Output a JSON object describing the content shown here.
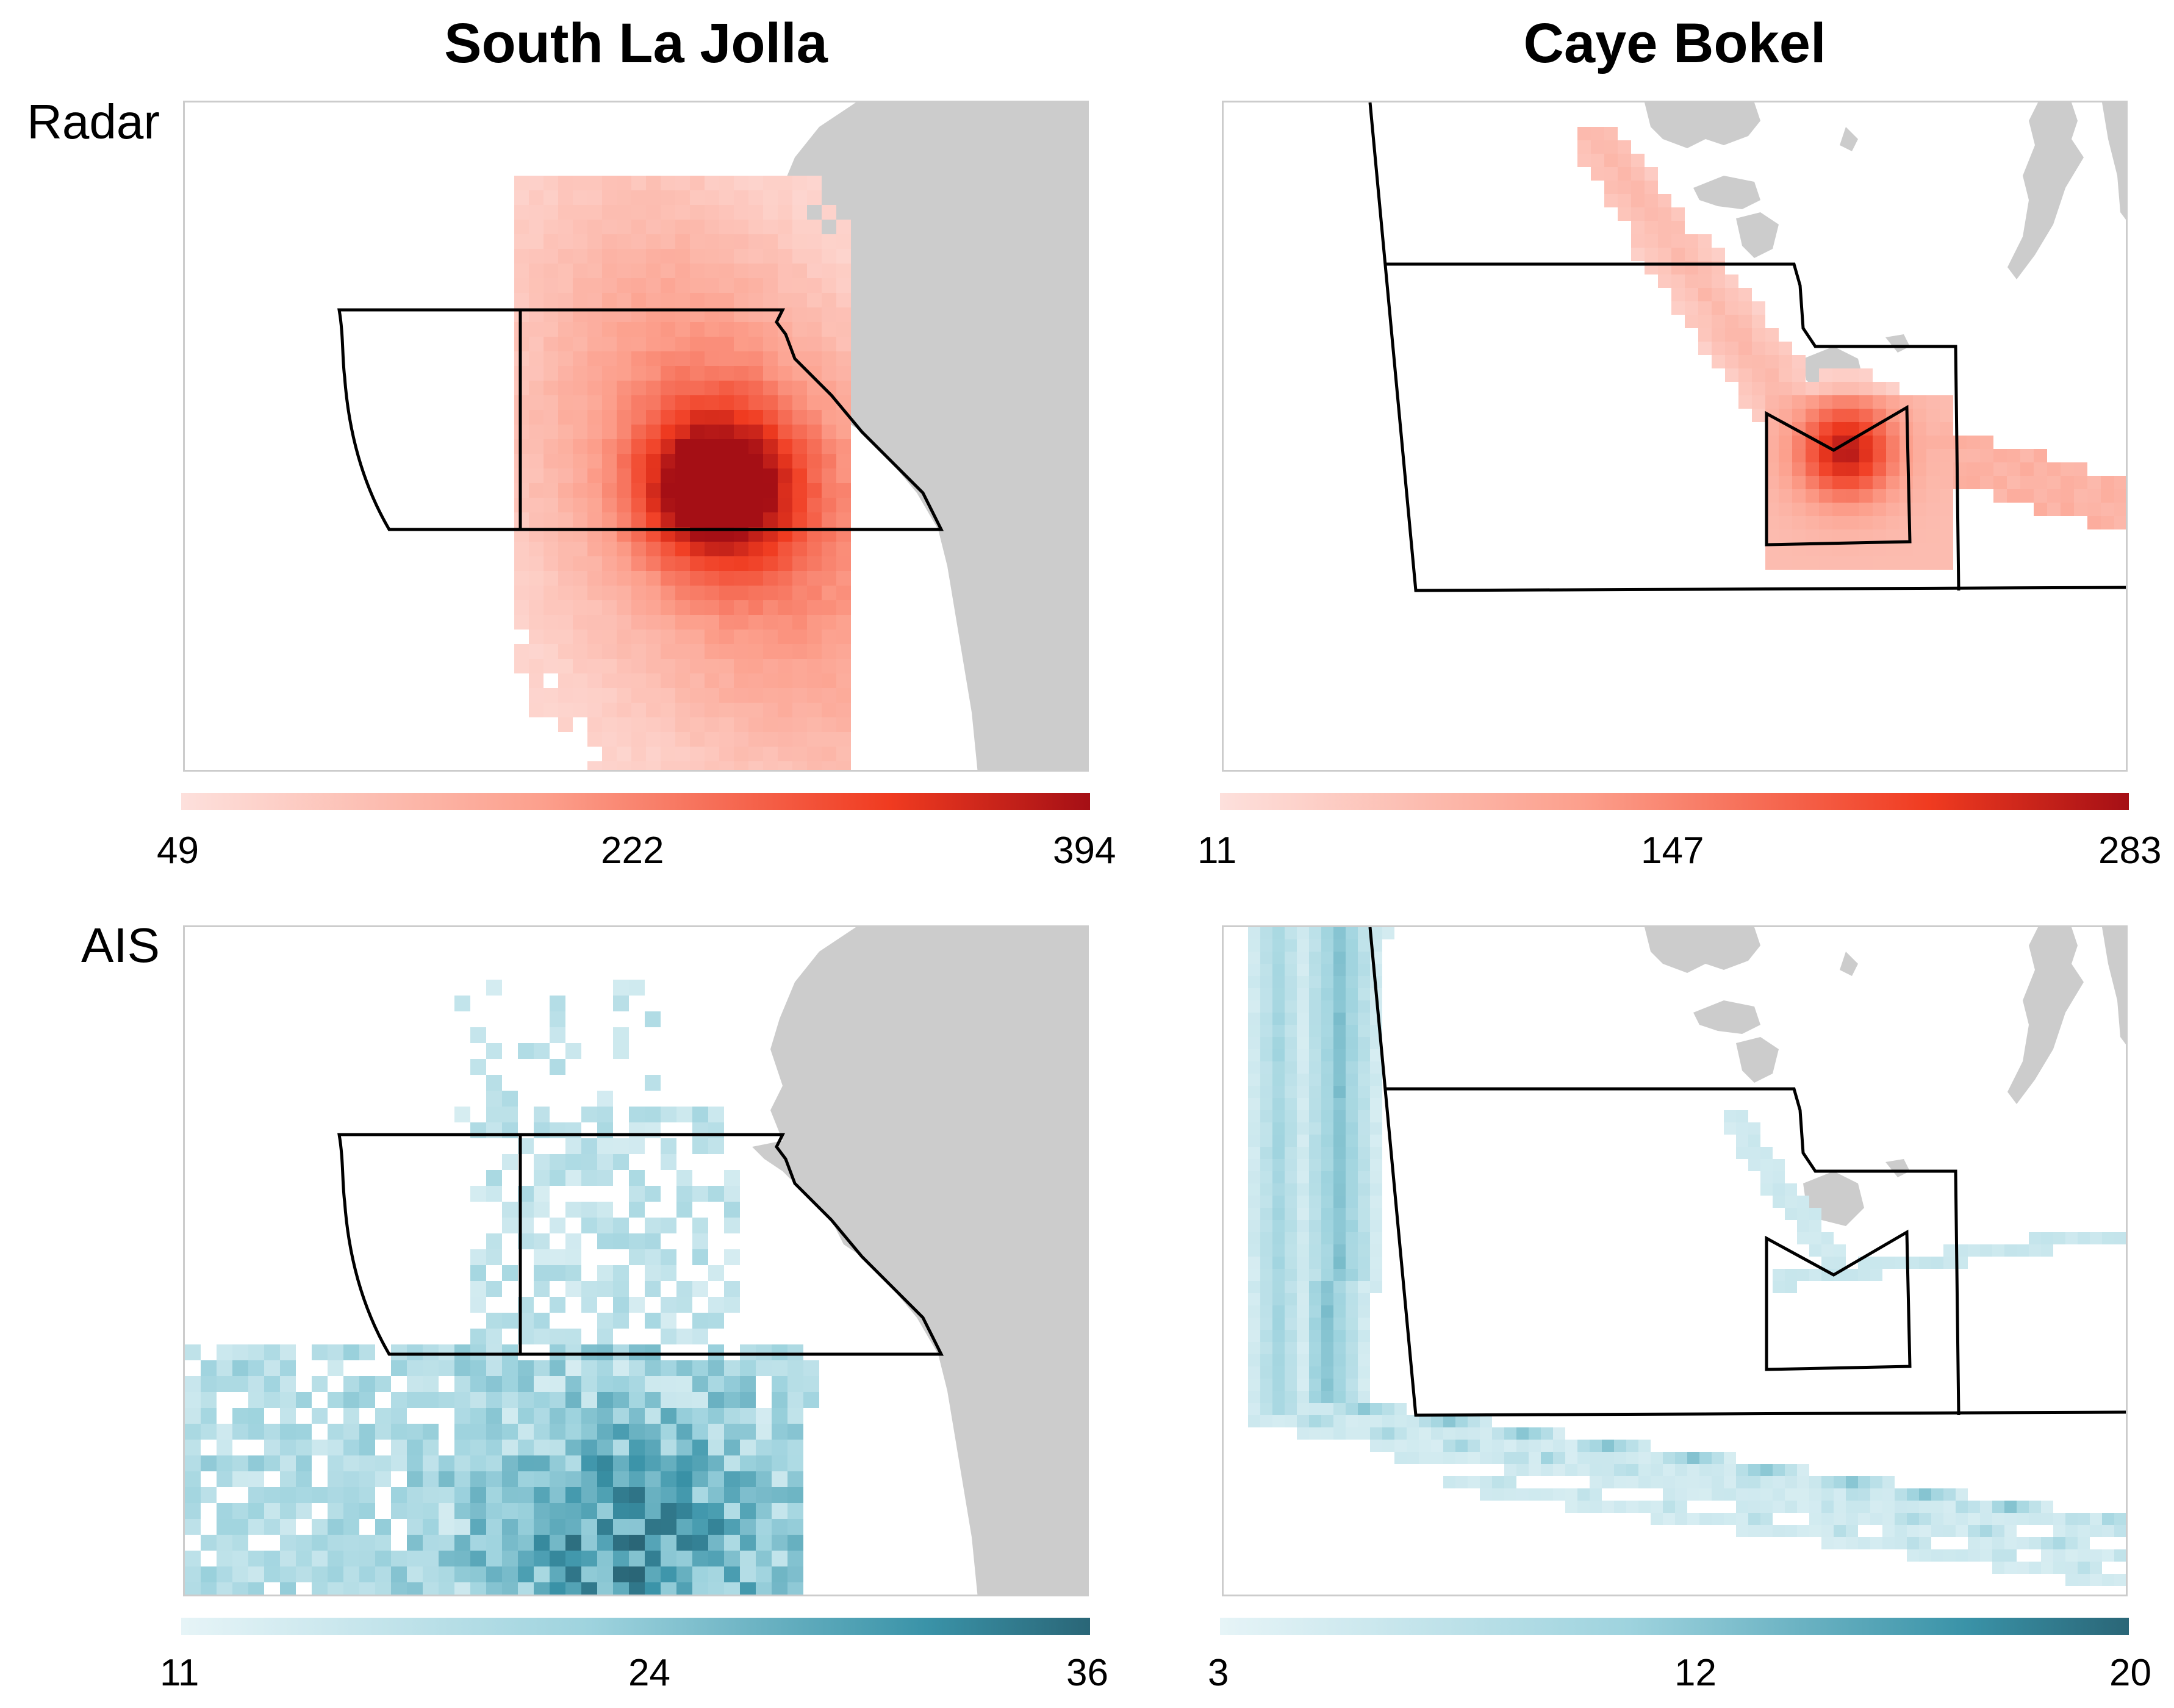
{
  "columns": [
    {
      "title": "South La Jolla"
    },
    {
      "title": "Caye Bokel"
    }
  ],
  "rows": [
    {
      "label": "Radar"
    },
    {
      "label": "AIS"
    }
  ],
  "colors": {
    "land": "#cccccc",
    "radar_low": "#fde0dc",
    "radar_mid": "#fb6a4a",
    "radar_high": "#a50f15",
    "ais_low": "#e1f1f5",
    "ais_mid": "#7cc2d1",
    "ais_high": "#2a6f82",
    "outline": "#000000"
  },
  "chart_data": [
    {
      "type": "heatmap",
      "panel": "South La Jolla - Radar",
      "colorbar": {
        "min": 49,
        "mid": 222,
        "max": 394,
        "ticks": [
          "49",
          "222",
          "394"
        ]
      },
      "palette": "reds",
      "value_range": [
        49,
        394
      ]
    },
    {
      "type": "heatmap",
      "panel": "Caye Bokel - Radar",
      "colorbar": {
        "min": 11,
        "mid": 147,
        "max": 283,
        "ticks": [
          "11",
          "147",
          "283"
        ]
      },
      "palette": "reds",
      "value_range": [
        11,
        283
      ]
    },
    {
      "type": "heatmap",
      "panel": "South La Jolla - AIS",
      "colorbar": {
        "min": 11,
        "mid": 24,
        "max": 36,
        "ticks": [
          "11",
          "24",
          "36"
        ]
      },
      "palette": "blues",
      "value_range": [
        11,
        36
      ]
    },
    {
      "type": "heatmap",
      "panel": "Caye Bokel - AIS",
      "colorbar": {
        "min": 3,
        "mid": 12,
        "max": 20,
        "ticks": [
          "3",
          "12",
          "20"
        ]
      },
      "palette": "blues",
      "value_range": [
        3,
        20
      ]
    }
  ]
}
